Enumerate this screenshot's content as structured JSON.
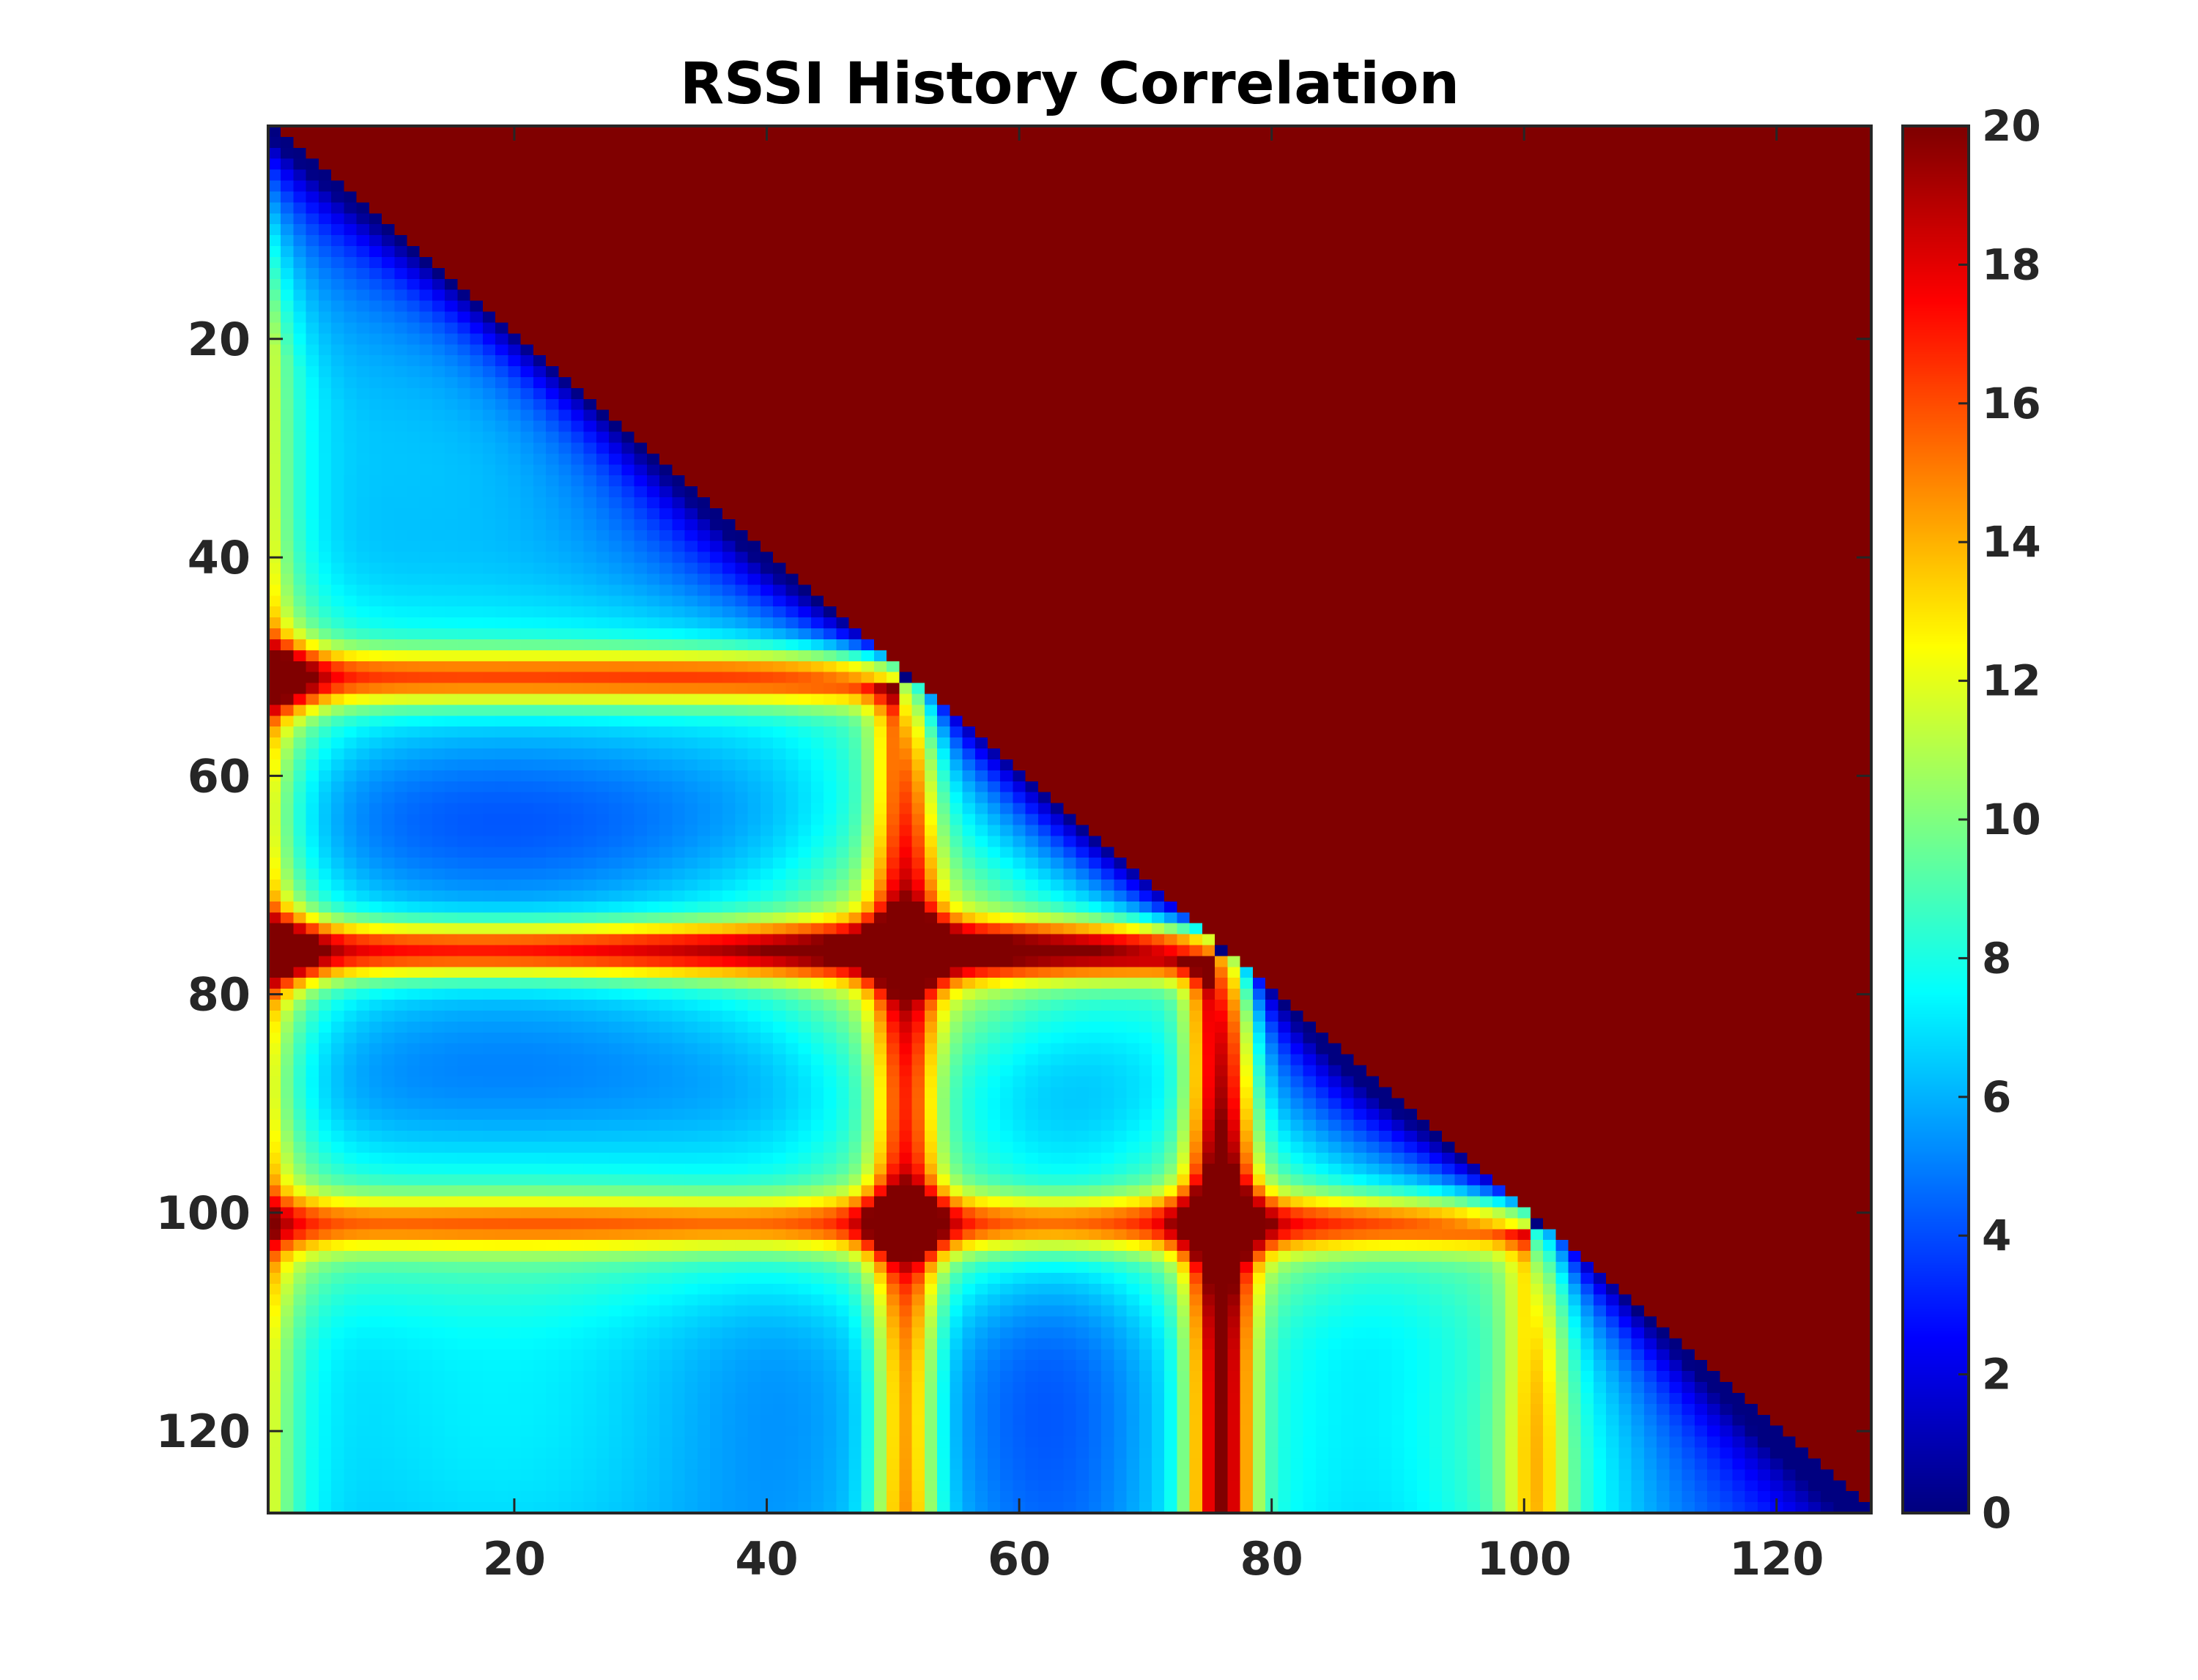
{
  "chart_data": {
    "type": "heatmap",
    "title": "RSSI History Correlation",
    "xlabel": "",
    "ylabel": "",
    "x_range": [
      0.5,
      127.5
    ],
    "y_range": [
      0.5,
      127.5
    ],
    "y_direction": "reversed",
    "x_ticks": [
      "20",
      "40",
      "60",
      "80",
      "100",
      "120"
    ],
    "y_ticks": [
      "20",
      "40",
      "60",
      "80",
      "100",
      "120"
    ],
    "grid": false,
    "colormap": "jet",
    "color_range": [
      0,
      20
    ],
    "colorbar_ticks": [
      "0",
      "2",
      "4",
      "6",
      "8",
      "10",
      "12",
      "14",
      "16",
      "18",
      "20"
    ],
    "matrix_size": [
      127,
      127
    ],
    "upper_triangle_value": 20,
    "description_points": {
      "hotspots": [
        {
          "x": 1,
          "y": 51,
          "value": 19
        },
        {
          "x": 1,
          "y": 76,
          "value": 19
        },
        {
          "x": 51,
          "y": 76,
          "value": 20
        },
        {
          "x": 51,
          "y": 101,
          "value": 20
        },
        {
          "x": 76,
          "y": 101,
          "value": 20
        }
      ],
      "hot_lines": [
        {
          "orientation": "horizontal",
          "index": 51,
          "value": 14
        },
        {
          "orientation": "horizontal",
          "index": 76,
          "value": 17
        },
        {
          "orientation": "horizontal",
          "index": 101,
          "value": 13
        },
        {
          "orientation": "vertical",
          "index": 51,
          "value": 13
        },
        {
          "orientation": "vertical",
          "index": 76,
          "value": 17
        },
        {
          "orientation": "vertical",
          "index": 101,
          "value": 10
        }
      ],
      "diagonal_value": 1
    }
  }
}
